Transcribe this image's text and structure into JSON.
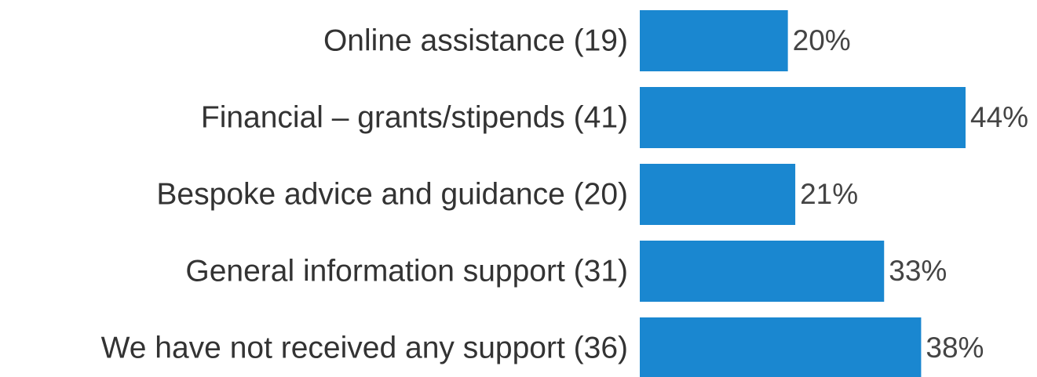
{
  "chart_data": {
    "type": "bar",
    "orientation": "horizontal",
    "categories": [
      "Online assistance (19)",
      "Financial – grants/stipends (41)",
      "Bespoke advice and guidance  (20)",
      "General information support (31)",
      "We have not received any support (36)"
    ],
    "values": [
      20,
      44,
      21,
      33,
      38
    ],
    "value_labels": [
      "20%",
      "44%",
      "21%",
      "33%",
      "38%"
    ],
    "color": "#1a87d0"
  }
}
